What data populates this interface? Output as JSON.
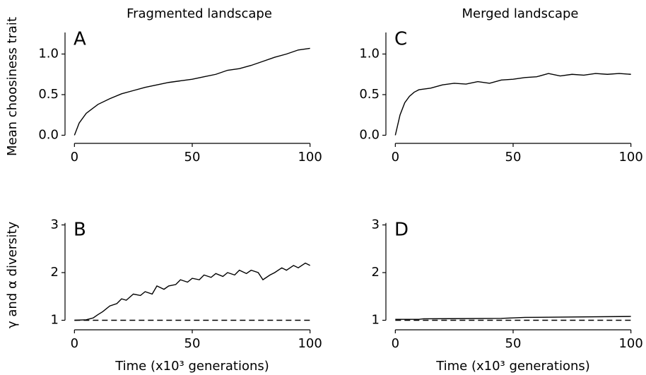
{
  "chart_data": [
    {
      "type": "line",
      "title": "Fragmented landscape",
      "panel_label": "A",
      "ylabel": "Mean choosiness trait",
      "x": [
        0,
        2,
        5,
        10,
        15,
        20,
        25,
        30,
        35,
        40,
        45,
        50,
        55,
        60,
        65,
        70,
        75,
        80,
        85,
        90,
        95,
        100
      ],
      "series": [
        {
          "color": "#000000",
          "style": "solid",
          "values": [
            0,
            0.15,
            0.27,
            0.38,
            0.45,
            0.51,
            0.55,
            0.59,
            0.62,
            0.65,
            0.67,
            0.69,
            0.72,
            0.75,
            0.8,
            0.82,
            0.86,
            0.91,
            0.96,
            1.0,
            1.05,
            1.07
          ]
        }
      ],
      "xlim": [
        -4,
        104
      ],
      "xticks": [
        0,
        50,
        100
      ],
      "ylim": [
        -0.1,
        1.3
      ],
      "yticks": [
        {
          "value": 0,
          "label": "0.0"
        },
        {
          "value": 0.5,
          "label": "0.5"
        },
        {
          "value": 1,
          "label": "1.0"
        }
      ]
    },
    {
      "type": "line",
      "panel_label": "B",
      "ylabel": "γ and α diversity",
      "xlabel": "Time (x10³ generations)",
      "x": [
        0,
        5,
        8,
        10,
        12,
        15,
        18,
        20,
        22,
        25,
        28,
        30,
        33,
        35,
        38,
        40,
        43,
        45,
        48,
        50,
        53,
        55,
        58,
        60,
        63,
        65,
        68,
        70,
        73,
        75,
        78,
        80,
        83,
        85,
        88,
        90,
        93,
        95,
        98,
        100
      ],
      "series": [
        {
          "color": "#000000",
          "style": "solid",
          "values": [
            1,
            1.01,
            1.05,
            1.12,
            1.18,
            1.3,
            1.35,
            1.45,
            1.42,
            1.55,
            1.52,
            1.6,
            1.55,
            1.72,
            1.65,
            1.72,
            1.75,
            1.85,
            1.8,
            1.88,
            1.85,
            1.95,
            1.9,
            1.98,
            1.92,
            2.0,
            1.95,
            2.05,
            1.98,
            2.05,
            2.0,
            1.85,
            1.95,
            2.0,
            2.1,
            2.05,
            2.15,
            2.1,
            2.2,
            2.15
          ]
        },
        {
          "color": "#000000",
          "style": "dashed",
          "values": [
            1,
            1,
            1,
            1,
            1,
            1,
            1,
            1,
            1,
            1,
            1,
            1,
            1,
            1,
            1,
            1,
            1,
            1,
            1,
            1,
            1,
            1,
            1,
            1,
            1,
            1,
            1,
            1,
            1,
            1,
            1,
            1,
            1,
            1,
            1,
            1,
            1,
            1,
            1,
            1
          ]
        }
      ],
      "xlim": [
        -4,
        104
      ],
      "xticks": [
        0,
        50,
        100
      ],
      "ylim": [
        0.8,
        3.1
      ],
      "yticks": [
        1,
        2,
        3
      ]
    },
    {
      "type": "line",
      "title": "Merged landscape",
      "panel_label": "C",
      "x": [
        0,
        2,
        4,
        6,
        8,
        10,
        15,
        20,
        25,
        30,
        35,
        40,
        45,
        50,
        55,
        60,
        65,
        70,
        75,
        80,
        85,
        90,
        95,
        100
      ],
      "series": [
        {
          "color": "#000000",
          "style": "solid",
          "values": [
            0,
            0.25,
            0.4,
            0.48,
            0.53,
            0.56,
            0.58,
            0.62,
            0.64,
            0.63,
            0.66,
            0.64,
            0.68,
            0.69,
            0.71,
            0.72,
            0.76,
            0.73,
            0.75,
            0.74,
            0.76,
            0.75,
            0.76,
            0.75
          ]
        }
      ],
      "xlim": [
        -4,
        104
      ],
      "xticks": [
        0,
        50,
        100
      ],
      "ylim": [
        -0.1,
        1.3
      ],
      "yticks": [
        {
          "value": 0,
          "label": "0.0"
        },
        {
          "value": 0.5,
          "label": "0.5"
        },
        {
          "value": 1,
          "label": "1.0"
        }
      ]
    },
    {
      "type": "line",
      "panel_label": "D",
      "xlabel": "Time (x10³ generations)",
      "x": [
        0,
        10,
        12,
        45,
        55,
        100
      ],
      "series": [
        {
          "color": "#000000",
          "style": "solid",
          "values": [
            1.02,
            1.02,
            1.03,
            1.04,
            1.06,
            1.08
          ]
        },
        {
          "color": "#000000",
          "style": "dashed",
          "values": [
            1,
            1,
            1,
            1,
            1,
            1
          ]
        }
      ],
      "xlim": [
        -4,
        104
      ],
      "xticks": [
        0,
        50,
        100
      ],
      "ylim": [
        0.8,
        3.1
      ],
      "yticks": [
        1,
        2,
        3
      ]
    }
  ]
}
